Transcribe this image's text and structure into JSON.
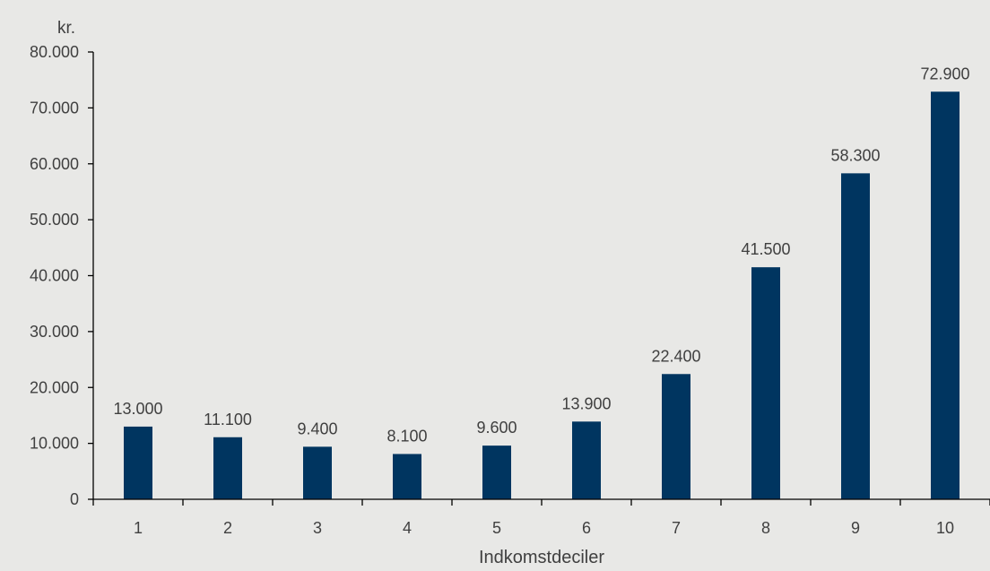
{
  "chart_data": {
    "type": "bar",
    "title": "",
    "ylabel": "kr.",
    "xlabel": "Indkomstdeciler",
    "categories": [
      "1",
      "2",
      "3",
      "4",
      "5",
      "6",
      "7",
      "8",
      "9",
      "10"
    ],
    "values": [
      13000,
      11100,
      9400,
      8100,
      9600,
      13900,
      22400,
      41500,
      58300,
      72900
    ],
    "data_labels": [
      "13.000",
      "11.100",
      "9.400",
      "8.100",
      "9.600",
      "13.900",
      "22.400",
      "41.500",
      "58.300",
      "72.900"
    ],
    "ylim": [
      0,
      80000
    ],
    "yticks": [
      0,
      10000,
      20000,
      30000,
      40000,
      50000,
      60000,
      70000,
      80000
    ],
    "ytick_labels": [
      "0",
      "10.000",
      "20.000",
      "30.000",
      "40.000",
      "50.000",
      "60.000",
      "70.000",
      "80.000"
    ],
    "grid": false,
    "legend": "none",
    "bar_color": "#003560",
    "background_color": "#e8e8e6"
  }
}
